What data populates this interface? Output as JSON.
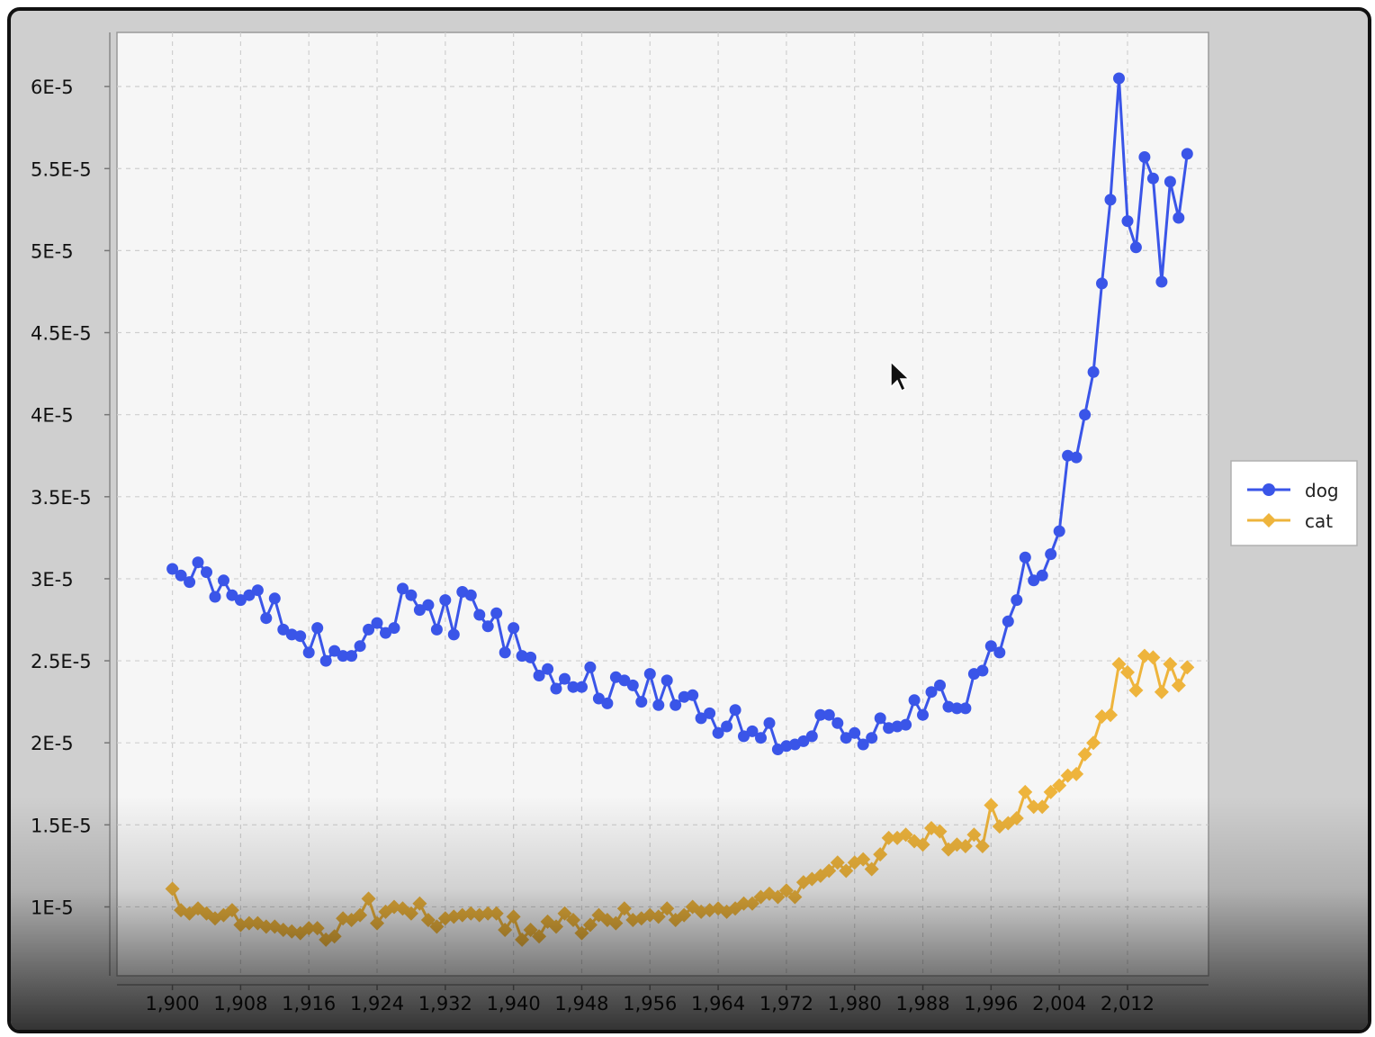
{
  "chart_data": {
    "type": "line",
    "title": "",
    "xlabel": "",
    "ylabel": "",
    "grid": true,
    "legend_position": "right",
    "xlim": [
      1893.5,
      2021.5
    ],
    "ylim": [
      5.8e-06,
      6.33e-05
    ],
    "x_ticks": [
      "1,900",
      "1,908",
      "1,916",
      "1,924",
      "1,932",
      "1,940",
      "1,948",
      "1,956",
      "1,964",
      "1,972",
      "1,980",
      "1,988",
      "1,996",
      "2,004",
      "2,012"
    ],
    "y_ticks": [
      "6E-5",
      "5.5E-5",
      "5E-5",
      "4.5E-5",
      "4E-5",
      "3.5E-5",
      "3E-5",
      "2.5E-5",
      "2E-5",
      "1.5E-5",
      "1E-5"
    ],
    "x_start": 1900,
    "series": [
      {
        "name": "dog",
        "color": "#3a55e8",
        "marker": "circle",
        "values": [
          3.06e-05,
          3.02e-05,
          2.98e-05,
          3.1e-05,
          3.04e-05,
          2.89e-05,
          2.99e-05,
          2.9e-05,
          2.87e-05,
          2.9e-05,
          2.93e-05,
          2.76e-05,
          2.88e-05,
          2.69e-05,
          2.66e-05,
          2.65e-05,
          2.55e-05,
          2.7e-05,
          2.5e-05,
          2.56e-05,
          2.53e-05,
          2.53e-05,
          2.59e-05,
          2.69e-05,
          2.73e-05,
          2.67e-05,
          2.7e-05,
          2.94e-05,
          2.9e-05,
          2.81e-05,
          2.84e-05,
          2.69e-05,
          2.87e-05,
          2.66e-05,
          2.92e-05,
          2.9e-05,
          2.78e-05,
          2.71e-05,
          2.79e-05,
          2.55e-05,
          2.7e-05,
          2.53e-05,
          2.52e-05,
          2.41e-05,
          2.45e-05,
          2.33e-05,
          2.39e-05,
          2.34e-05,
          2.34e-05,
          2.46e-05,
          2.27e-05,
          2.24e-05,
          2.4e-05,
          2.38e-05,
          2.35e-05,
          2.25e-05,
          2.42e-05,
          2.23e-05,
          2.38e-05,
          2.23e-05,
          2.28e-05,
          2.29e-05,
          2.15e-05,
          2.18e-05,
          2.06e-05,
          2.1e-05,
          2.2e-05,
          2.04e-05,
          2.07e-05,
          2.03e-05,
          2.12e-05,
          1.96e-05,
          1.98e-05,
          1.99e-05,
          2.01e-05,
          2.04e-05,
          2.17e-05,
          2.17e-05,
          2.12e-05,
          2.03e-05,
          2.06e-05,
          1.99e-05,
          2.03e-05,
          2.15e-05,
          2.09e-05,
          2.1e-05,
          2.11e-05,
          2.26e-05,
          2.17e-05,
          2.31e-05,
          2.35e-05,
          2.22e-05,
          2.21e-05,
          2.21e-05,
          2.42e-05,
          2.44e-05,
          2.59e-05,
          2.55e-05,
          2.74e-05,
          2.87e-05,
          3.13e-05,
          2.99e-05,
          3.02e-05,
          3.15e-05,
          3.29e-05,
          3.75e-05,
          3.74e-05,
          4e-05,
          4.26e-05,
          4.8e-05,
          5.31e-05,
          6.05e-05,
          5.18e-05,
          5.02e-05,
          5.57e-05,
          5.44e-05,
          4.81e-05,
          5.42e-05,
          5.2e-05,
          5.59e-05
        ]
      },
      {
        "name": "cat",
        "color": "#eeb43c",
        "marker": "diamond",
        "values": [
          1.11e-05,
          9.8e-06,
          9.6e-06,
          9.9e-06,
          9.6e-06,
          9.3e-06,
          9.5e-06,
          9.8e-06,
          8.9e-06,
          9e-06,
          9e-06,
          8.8e-06,
          8.8e-06,
          8.6e-06,
          8.5e-06,
          8.4e-06,
          8.7e-06,
          8.7e-06,
          8e-06,
          8.2e-06,
          9.3e-06,
          9.2e-06,
          9.5e-06,
          1.05e-05,
          9e-06,
          9.7e-06,
          1e-05,
          9.9e-06,
          9.6e-06,
          1.02e-05,
          9.2e-06,
          8.8e-06,
          9.3e-06,
          9.4e-06,
          9.5e-06,
          9.6e-06,
          9.5e-06,
          9.6e-06,
          9.6e-06,
          8.6e-06,
          9.4e-06,
          8e-06,
          8.6e-06,
          8.2e-06,
          9.1e-06,
          8.8e-06,
          9.6e-06,
          9.2e-06,
          8.4e-06,
          8.9e-06,
          9.5e-06,
          9.2e-06,
          9e-06,
          9.9e-06,
          9.2e-06,
          9.3e-06,
          9.5e-06,
          9.4e-06,
          9.9e-06,
          9.2e-06,
          9.5e-06,
          1e-05,
          9.7e-06,
          9.8e-06,
          9.9e-06,
          9.7e-06,
          9.9e-06,
          1.02e-05,
          1.02e-05,
          1.06e-05,
          1.08e-05,
          1.06e-05,
          1.1e-05,
          1.06e-05,
          1.15e-05,
          1.17e-05,
          1.19e-05,
          1.22e-05,
          1.27e-05,
          1.22e-05,
          1.27e-05,
          1.29e-05,
          1.23e-05,
          1.32e-05,
          1.42e-05,
          1.42e-05,
          1.44e-05,
          1.4e-05,
          1.38e-05,
          1.48e-05,
          1.46e-05,
          1.35e-05,
          1.38e-05,
          1.37e-05,
          1.44e-05,
          1.37e-05,
          1.62e-05,
          1.49e-05,
          1.51e-05,
          1.54e-05,
          1.7e-05,
          1.61e-05,
          1.61e-05,
          1.7e-05,
          1.74e-05,
          1.8e-05,
          1.81e-05,
          1.93e-05,
          2e-05,
          2.16e-05,
          2.17e-05,
          2.48e-05,
          2.43e-05,
          2.32e-05,
          2.53e-05,
          2.52e-05,
          2.31e-05,
          2.48e-05,
          2.35e-05,
          2.46e-05
        ]
      }
    ]
  }
}
